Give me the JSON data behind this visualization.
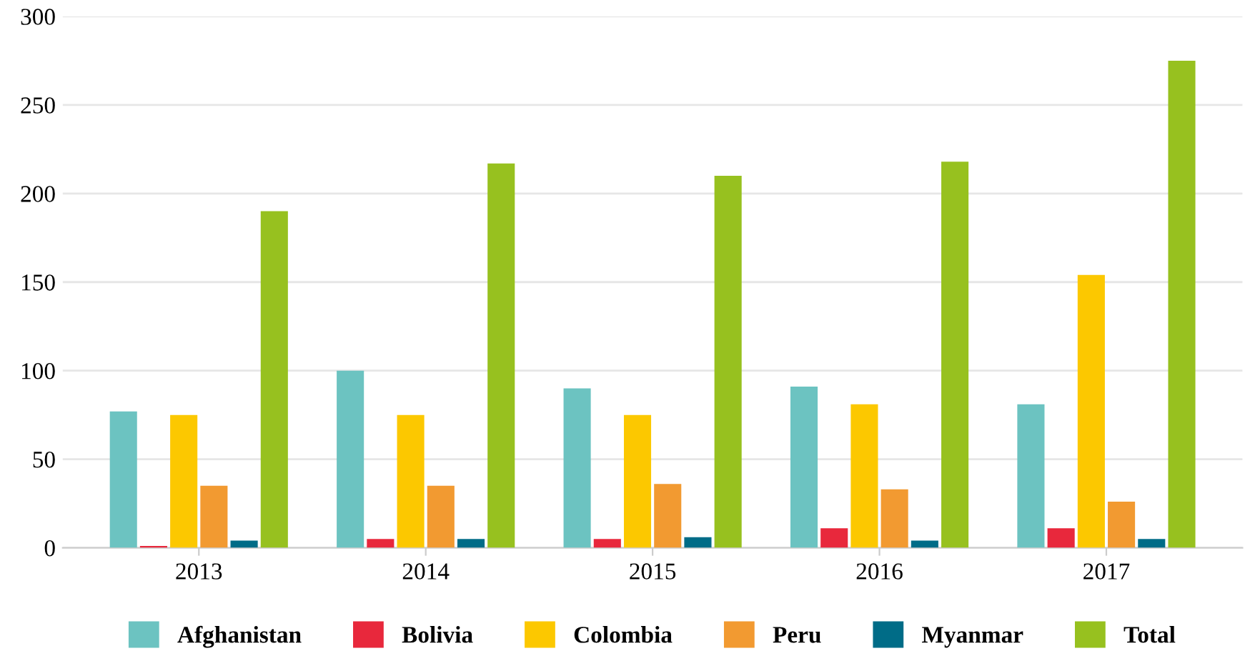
{
  "chart_data": {
    "type": "bar",
    "categories": [
      "2013",
      "2014",
      "2015",
      "2016",
      "2017"
    ],
    "series": [
      {
        "name": "Afghanistan",
        "color": "#6cc3c1",
        "values": [
          77,
          100,
          90,
          91,
          81
        ]
      },
      {
        "name": "Bolivia",
        "color": "#e8283c",
        "values": [
          1,
          5,
          5,
          11,
          11
        ]
      },
      {
        "name": "Colombia",
        "color": "#fcc800",
        "values": [
          75,
          75,
          75,
          81,
          154
        ]
      },
      {
        "name": "Peru",
        "color": "#f29a31",
        "values": [
          35,
          35,
          36,
          33,
          26
        ]
      },
      {
        "name": "Myanmar",
        "color": "#006c87",
        "values": [
          4,
          5,
          6,
          4,
          5
        ]
      },
      {
        "name": "Total",
        "color": "#97c11f",
        "values": [
          190,
          217,
          210,
          218,
          275
        ]
      }
    ],
    "ylim": [
      0,
      300
    ],
    "yticks": [
      0,
      50,
      100,
      150,
      200,
      250,
      300
    ],
    "grid": "y",
    "legend": "bottom"
  }
}
